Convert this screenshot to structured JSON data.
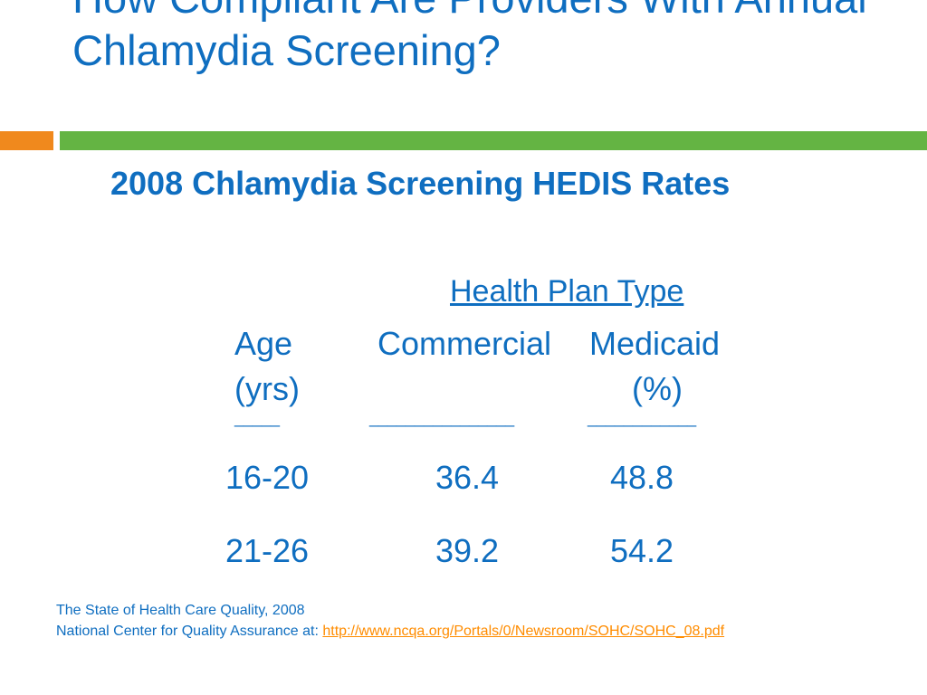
{
  "slide": {
    "title": "How Compliant Are Providers With Annual Chlamydia Screening?",
    "subtitle": "2008 Chlamydia Screening HEDIS Rates",
    "accent_colors": {
      "text": "#0f6ec0",
      "orange_bar": "#f0891d",
      "green_bar": "#64b443",
      "link": "#ff8c00"
    }
  },
  "table": {
    "group_header": "Health Plan Type",
    "columns": {
      "age_line1": "Age",
      "age_line2": "(yrs)",
      "commercial": "Commercial",
      "medicaid_line1": "Medicaid",
      "medicaid_line2": "(%)"
    },
    "rules": {
      "age": "_____",
      "commercial": "________________",
      "medicaid": "____________"
    },
    "rows": [
      {
        "age": "16-20",
        "commercial": "36.4",
        "medicaid": "48.8"
      },
      {
        "age": "21-26",
        "commercial": "39.2",
        "medicaid": "54.2"
      }
    ]
  },
  "source": {
    "line1": "The State of Health Care Quality, 2008",
    "line2_prefix": "National Center for Quality Assurance at: ",
    "link_text": "http://www.ncqa.org/Portals/0/Newsroom/SOHC/SOHC_08.pdf"
  }
}
